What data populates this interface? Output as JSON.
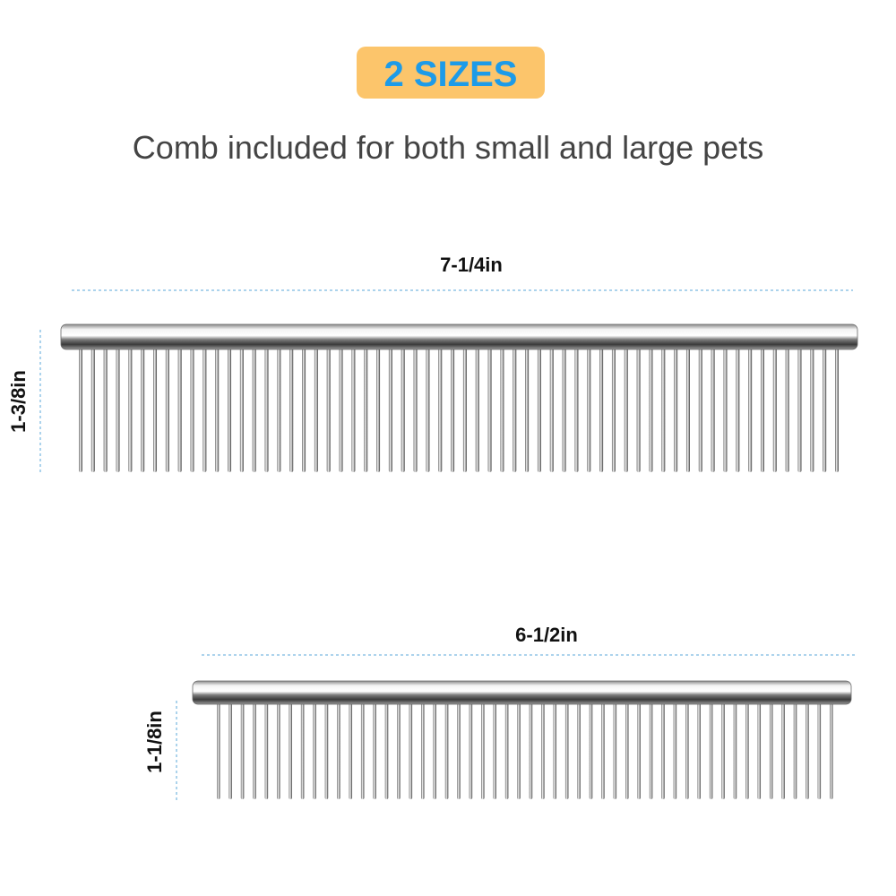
{
  "badge": "2 SIZES",
  "subtitle": "Comb included for both small and large pets",
  "combs": [
    {
      "width_label": "7-1/4in",
      "height_label": "1-3/8in"
    },
    {
      "width_label": "6-1/2in",
      "height_label": "1-1/8in"
    }
  ]
}
